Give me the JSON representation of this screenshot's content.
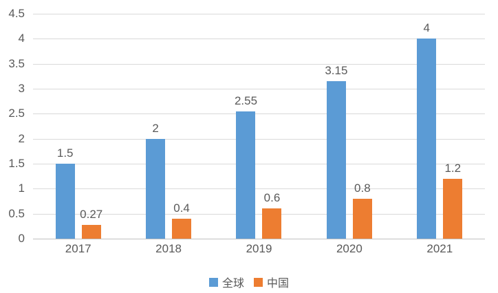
{
  "chart_data": {
    "type": "bar",
    "title": "",
    "categories": [
      "2017",
      "2018",
      "2019",
      "2020",
      "2021"
    ],
    "series": [
      {
        "name": "全球",
        "color": "#5B9BD5",
        "values": [
          1.5,
          2,
          2.55,
          3.15,
          4
        ],
        "labels": [
          "1.5",
          "2",
          "2.55",
          "3.15",
          "4"
        ]
      },
      {
        "name": "中国",
        "color": "#ED7D31",
        "values": [
          0.27,
          0.4,
          0.6,
          0.8,
          1.2
        ],
        "labels": [
          "0.27",
          "0.4",
          "0.6",
          "0.8",
          "1.2"
        ]
      }
    ],
    "xlabel": "",
    "ylabel": "",
    "ylim": [
      0,
      4.5
    ],
    "ytick_step": 0.5,
    "yticks": [
      "4.5",
      "4",
      "3.5",
      "3",
      "2.5",
      "2",
      "1.5",
      "1",
      "0.5",
      "0"
    ],
    "grid": true,
    "legend_position": "bottom"
  },
  "colors": {
    "background": "#FFFFFF",
    "gridline": "#D9D9D9",
    "baseline": "#BFBFBF",
    "axis_text": "#595959",
    "data_label_text": "#595959"
  }
}
